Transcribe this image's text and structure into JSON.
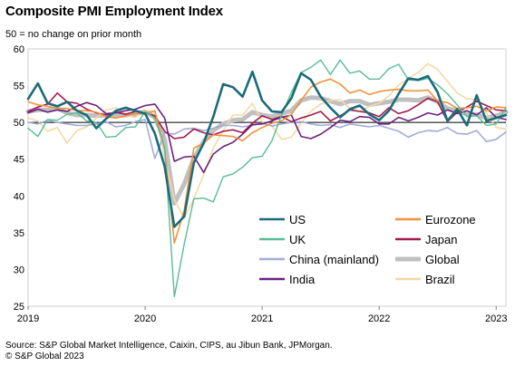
{
  "header": {
    "title": "Composite PMI Employment Index",
    "subtitle": "50 = no change on prior month"
  },
  "footer": {
    "source": "Source: S&P Global Market Intelligence, Caixin, CIPS, au Jibun Bank,  JPMorgan.",
    "copyright": "© S&P Global 2023"
  },
  "chart_data": {
    "type": "line",
    "title": "Composite PMI Employment Index",
    "subtitle": "50 = no change on prior month",
    "x_range": [
      "2019-01",
      "2023-02"
    ],
    "x_tick_labels": [
      "2019",
      "2020",
      "2021",
      "2022",
      "2023"
    ],
    "ylim": [
      25,
      60
    ],
    "y_ticks": [
      25,
      30,
      35,
      40,
      45,
      50,
      55,
      60
    ],
    "reference_line": 50,
    "grid": false,
    "legend_position": "lower-right",
    "x": [
      "2019-01",
      "2019-02",
      "2019-03",
      "2019-04",
      "2019-05",
      "2019-06",
      "2019-07",
      "2019-08",
      "2019-09",
      "2019-10",
      "2019-11",
      "2019-12",
      "2020-01",
      "2020-02",
      "2020-03",
      "2020-04",
      "2020-05",
      "2020-06",
      "2020-07",
      "2020-08",
      "2020-09",
      "2020-10",
      "2020-11",
      "2020-12",
      "2021-01",
      "2021-02",
      "2021-03",
      "2021-04",
      "2021-05",
      "2021-06",
      "2021-07",
      "2021-08",
      "2021-09",
      "2021-10",
      "2021-11",
      "2021-12",
      "2022-01",
      "2022-02",
      "2022-03",
      "2022-04",
      "2022-05",
      "2022-06",
      "2022-07",
      "2022-08",
      "2022-09",
      "2022-10",
      "2022-11",
      "2022-12",
      "2023-01",
      "2023-02"
    ],
    "series": [
      {
        "name": "US",
        "color": "#1b6b7a",
        "width": 2.6,
        "values": [
          53.2,
          55.3,
          52.6,
          52.2,
          52.8,
          51.6,
          51.0,
          49.2,
          50.5,
          51.6,
          52.0,
          51.6,
          51.2,
          48.5,
          44.0,
          35.8,
          37.2,
          44.5,
          47.2,
          50.8,
          55.2,
          54.8,
          53.5,
          56.9,
          53.0,
          51.5,
          51.4,
          53.3,
          56.7,
          55.8,
          53.5,
          52.0,
          50.7,
          51.8,
          52.3,
          51.1,
          50.3,
          51.6,
          53.9,
          56.0,
          55.8,
          56.3,
          54.1,
          50.2,
          51.8,
          49.6,
          53.7,
          50.2,
          50.6,
          51.0
        ]
      },
      {
        "name": "Eurozone",
        "color": "#f0923c",
        "width": 1.6,
        "values": [
          52.8,
          52.4,
          52.2,
          51.9,
          51.9,
          51.6,
          51.6,
          51.4,
          50.8,
          50.6,
          50.9,
          51.2,
          51.2,
          51.6,
          46.3,
          33.6,
          38.0,
          46.5,
          47.2,
          48.3,
          48.2,
          48.1,
          47.5,
          48.6,
          49.3,
          49.9,
          50.2,
          51.1,
          53.0,
          54.8,
          55.5,
          55.9,
          55.2,
          54.0,
          54.4,
          53.8,
          54.2,
          54.4,
          54.5,
          54.3,
          54.3,
          54.4,
          52.9,
          52.7,
          51.9,
          52.0,
          52.2,
          51.6,
          52.1,
          52.0
        ]
      },
      {
        "name": "UK",
        "color": "#58bc96",
        "width": 1.4,
        "values": [
          49.2,
          48.1,
          50.4,
          50.3,
          51.1,
          51.3,
          50.2,
          50.0,
          48.0,
          48.1,
          49.3,
          49.4,
          51.5,
          50.6,
          46.6,
          26.3,
          33.4,
          39.6,
          39.7,
          39.2,
          42.6,
          43.0,
          43.9,
          45.2,
          45.4,
          47.5,
          51.0,
          54.1,
          56.8,
          57.5,
          58.5,
          56.5,
          58.5,
          56.7,
          57.0,
          55.9,
          55.9,
          57.3,
          57.9,
          55.8,
          55.7,
          56.0,
          55.1,
          53.9,
          52.4,
          50.8,
          50.9,
          49.6,
          49.8,
          52.0
        ]
      },
      {
        "name": "Japan",
        "color": "#a41c4d",
        "width": 1.6,
        "values": [
          51.5,
          52.1,
          52.5,
          54.0,
          52.8,
          52.6,
          51.8,
          51.3,
          51.0,
          51.4,
          51.1,
          51.5,
          51.3,
          50.9,
          48.8,
          47.8,
          48.0,
          49.1,
          48.6,
          48.3,
          48.8,
          49.0,
          48.6,
          49.9,
          50.9,
          50.4,
          50.8,
          50.1,
          50.6,
          51.0,
          51.5,
          50.2,
          50.9,
          51.7,
          51.5,
          51.3,
          50.8,
          52.0,
          51.2,
          51.6,
          52.4,
          53.3,
          52.8,
          50.1,
          51.4,
          52.1,
          52.9,
          52.3,
          51.7,
          51.6
        ]
      },
      {
        "name": "China (mainland)",
        "color": "#a2acd6",
        "width": 1.6,
        "values": [
          50.0,
          49.8,
          50.3,
          50.0,
          49.8,
          49.6,
          49.6,
          49.8,
          50.1,
          49.4,
          49.6,
          50.1,
          50.4,
          45.1,
          48.6,
          48.4,
          49.1,
          49.2,
          48.9,
          49.2,
          49.6,
          49.6,
          49.4,
          49.6,
          49.9,
          49.5,
          49.8,
          50.0,
          50.1,
          49.8,
          49.6,
          49.7,
          49.3,
          49.8,
          49.6,
          49.4,
          49.6,
          49.2,
          48.8,
          48.0,
          48.6,
          48.9,
          48.8,
          49.3,
          48.5,
          48.4,
          48.9,
          47.4,
          47.7,
          48.7
        ]
      },
      {
        "name": "Global",
        "color": "#c0c0c0",
        "width": 5,
        "values": [
          51.5,
          51.7,
          51.7,
          51.9,
          51.3,
          51.0,
          51.0,
          50.9,
          51.0,
          50.9,
          51.0,
          51.1,
          51.5,
          50.7,
          47.7,
          39.0,
          41.6,
          45.1,
          47.4,
          48.9,
          49.8,
          50.3,
          50.4,
          51.4,
          51.0,
          50.8,
          51.2,
          51.6,
          53.0,
          53.4,
          53.3,
          52.9,
          52.5,
          52.9,
          52.9,
          52.4,
          52.6,
          52.8,
          53.1,
          53.1,
          53.0,
          53.4,
          52.8,
          51.9,
          51.6,
          51.1,
          51.1,
          50.6,
          50.9,
          51.4
        ]
      },
      {
        "name": "India",
        "color": "#6b2181",
        "width": 1.6,
        "values": [
          51.3,
          51.8,
          51.4,
          51.7,
          51.5,
          52.2,
          52.7,
          52.3,
          51.2,
          51.3,
          51.6,
          51.8,
          52.3,
          52.5,
          50.6,
          44.7,
          45.3,
          45.4,
          43.2,
          45.7,
          46.7,
          47.3,
          48.4,
          49.7,
          49.8,
          50.2,
          50.7,
          51.0,
          48.1,
          47.8,
          48.4,
          49.3,
          50.3,
          50.1,
          50.8,
          50.7,
          49.8,
          49.8,
          50.7,
          50.2,
          50.7,
          51.3,
          51.0,
          51.7,
          51.2,
          51.6,
          51.0,
          52.0,
          50.7,
          50.4
        ]
      },
      {
        "name": "Brazil",
        "color": "#f3d9a5",
        "width": 1.6,
        "values": [
          50.6,
          50.2,
          48.8,
          49.3,
          47.2,
          48.9,
          49.4,
          50.6,
          51.7,
          52.0,
          51.0,
          50.7,
          51.7,
          51.3,
          45.2,
          39.5,
          37.0,
          39.6,
          42.9,
          46.5,
          48.9,
          51.0,
          51.0,
          52.6,
          50.1,
          49.5,
          47.7,
          48.0,
          49.9,
          51.5,
          52.5,
          53.0,
          53.1,
          51.9,
          51.5,
          52.2,
          52.6,
          53.6,
          55.1,
          56.0,
          56.8,
          58.0,
          57.2,
          55.6,
          54.0,
          53.2,
          53.1,
          51.3,
          49.3,
          49.1
        ]
      }
    ],
    "legend": [
      [
        "US",
        "Eurozone"
      ],
      [
        "UK",
        "Japan"
      ],
      [
        "China (mainland)",
        "Global"
      ],
      [
        "India",
        "Brazil"
      ]
    ]
  }
}
